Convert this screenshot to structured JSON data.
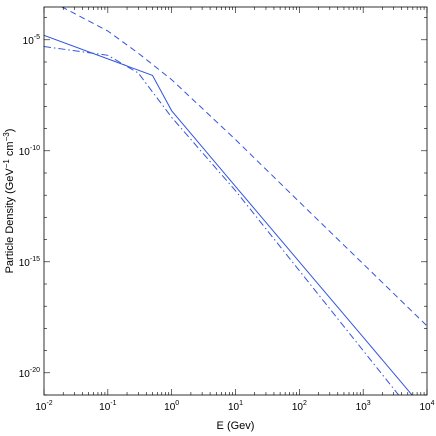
{
  "chart_data": {
    "type": "line",
    "title": "",
    "xlabel": "E (Gev)",
    "ylabel": {
      "part1": "Particle Density (GeV",
      "sup1": "−1",
      "part2": " cm",
      "sup2": "−3",
      "part3": ")"
    },
    "x_scale": "log",
    "y_scale": "log",
    "xlim": [
      0.01,
      10000
    ],
    "ylim": [
      1e-21,
      0.0003
    ],
    "x_ticks": [
      {
        "value": 0.01,
        "base": "10",
        "exp": "-2"
      },
      {
        "value": 0.1,
        "base": "10",
        "exp": "-1"
      },
      {
        "value": 1,
        "base": "10",
        "exp": "0"
      },
      {
        "value": 10,
        "base": "10",
        "exp": "1"
      },
      {
        "value": 100,
        "base": "10",
        "exp": "2"
      },
      {
        "value": 1000,
        "base": "10",
        "exp": "3"
      },
      {
        "value": 10000,
        "base": "10",
        "exp": "4"
      }
    ],
    "y_ticks": [
      {
        "value": 1e-05,
        "base": "10",
        "exp": "-5"
      },
      {
        "value": 1e-10,
        "base": "10",
        "exp": "-10"
      },
      {
        "value": 1e-15,
        "base": "10",
        "exp": "-15"
      },
      {
        "value": 1e-20,
        "base": "10",
        "exp": "-20"
      }
    ],
    "grid": false,
    "legend": null,
    "line_color": "#3355dd",
    "series": [
      {
        "style": "solid",
        "x": [
          0.01,
          0.5,
          1,
          10,
          100,
          1000,
          10000
        ],
        "y": [
          1.6e-05,
          2.5e-07,
          6.3e-09,
          2.5e-12,
          1e-15,
          4e-19,
          1.6e-22
        ]
      },
      {
        "style": "dashed",
        "x": [
          0.01,
          0.1,
          0.3,
          1,
          10,
          100,
          1000,
          10000
        ],
        "y": [
          0.0008,
          2.5e-05,
          2.5e-06,
          1.6e-07,
          3.2e-10,
          5e-13,
          8e-16,
          1.3e-18
        ]
      },
      {
        "style": "dashdot",
        "x": [
          0.01,
          0.1,
          0.3,
          1,
          10,
          100,
          1000,
          10000
        ],
        "y": [
          5e-06,
          2e-06,
          3.2e-07,
          3.2e-09,
          1.6e-12,
          4e-16,
          1e-19,
          2.5e-23
        ]
      }
    ]
  }
}
